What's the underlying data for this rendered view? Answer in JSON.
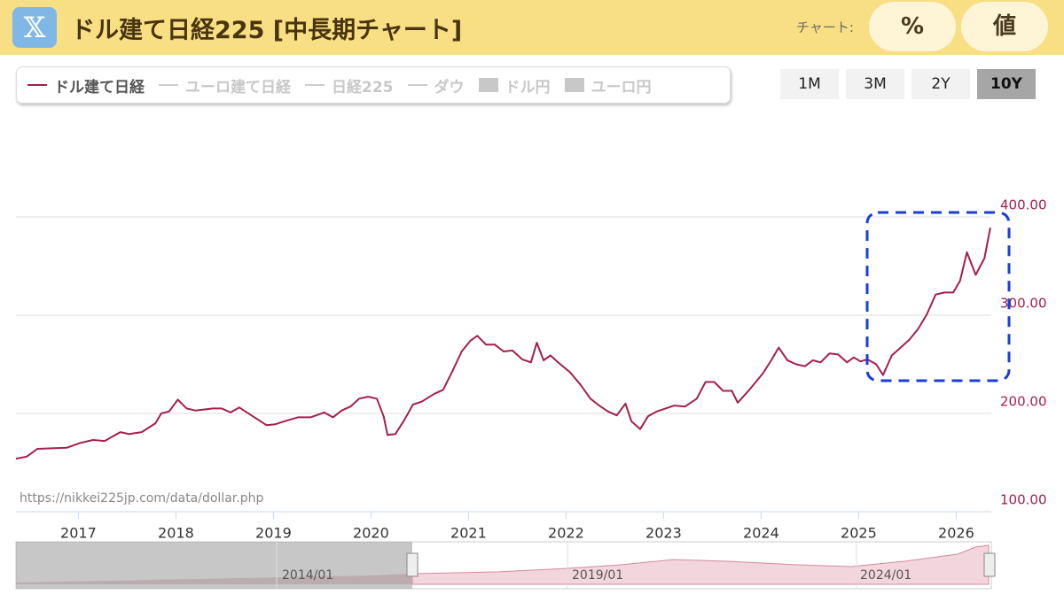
{
  "header": {
    "title": "ドル建て日経225 [中長期チャート]",
    "mode_label": "チャート:",
    "modes": [
      "%",
      "値"
    ]
  },
  "toolbar": {
    "legend_lines": [
      "ユーロ建て日経",
      "日経225",
      "ダウ"
    ],
    "legend_boxes": [
      "ドル円",
      "ユーロ円"
    ],
    "ranges": [
      "1M",
      "3M",
      "2Y",
      "10Y"
    ],
    "active_range": "10Y"
  },
  "source": "https://nikkei225jp.com/data/dollar.php",
  "navigator": {
    "labels": [
      "2014/01",
      "2019/01",
      "2024/01"
    ]
  },
  "chart_data": {
    "type": "line",
    "x": [
      2016.36,
      2016.47,
      2016.58,
      2016.88,
      2017.02,
      2017.15,
      2017.27,
      2017.43,
      2017.52,
      2017.65,
      2017.79,
      2017.85,
      2017.93,
      2018.02,
      2018.11,
      2018.2,
      2018.38,
      2018.47,
      2018.56,
      2018.65,
      2018.79,
      2018.93,
      2019.02,
      2019.11,
      2019.25,
      2019.38,
      2019.52,
      2019.61,
      2019.7,
      2019.79,
      2019.88,
      2019.97,
      2020.06,
      2020.13,
      2020.17,
      2020.25,
      2020.34,
      2020.43,
      2020.52,
      2020.65,
      2020.74,
      2020.84,
      2020.93,
      2021.02,
      2021.09,
      2021.18,
      2021.27,
      2021.36,
      2021.45,
      2021.55,
      2021.64,
      2021.7,
      2021.77,
      2021.84,
      2021.93,
      2022.04,
      2022.15,
      2022.25,
      2022.34,
      2022.43,
      2022.52,
      2022.61,
      2022.67,
      2022.76,
      2022.84,
      2022.93,
      2023.02,
      2023.11,
      2023.22,
      2023.34,
      2023.43,
      2023.52,
      2023.61,
      2023.7,
      2023.76,
      2023.88,
      2024.02,
      2024.11,
      2024.18,
      2024.27,
      2024.36,
      2024.45,
      2024.53,
      2024.61,
      2024.7,
      2024.79,
      2024.88,
      2024.95,
      2025.02,
      2025.09,
      2025.18,
      2025.25,
      2025.34,
      2025.43,
      2025.52,
      2025.61,
      2025.7,
      2025.79,
      2025.88,
      2025.97,
      2026.04,
      2026.11,
      2026.2,
      2026.29,
      2026.35
    ],
    "series": [
      {
        "name": "ドル建て日経",
        "color": "#a3204a",
        "values": [
          154,
          156,
          164,
          165,
          170,
          173,
          172,
          181,
          179,
          181,
          190,
          200,
          202,
          214,
          205,
          203,
          205,
          205,
          201,
          206,
          197,
          188,
          189,
          192,
          196,
          196,
          201,
          196,
          203,
          207,
          215,
          217,
          215,
          197,
          178,
          179,
          193,
          209,
          212,
          220,
          224,
          244,
          263,
          274,
          279,
          270,
          270,
          263,
          264,
          255,
          252,
          272,
          254,
          259,
          251,
          242,
          229,
          215,
          208,
          202,
          198,
          210,
          192,
          184,
          197,
          202,
          205,
          208,
          207,
          215,
          232,
          232,
          223,
          223,
          211,
          224,
          241,
          255,
          267,
          254,
          250,
          248,
          254,
          252,
          261,
          260,
          252,
          257,
          253,
          255,
          250,
          239,
          259,
          267,
          275,
          286,
          301,
          321,
          323,
          323,
          335,
          364,
          341,
          358,
          389
        ]
      }
    ],
    "xlim": [
      2016.36,
      2026.36
    ],
    "xticks": [
      2017,
      2018,
      2019,
      2020,
      2021,
      2022,
      2023,
      2024,
      2025,
      2026
    ],
    "ylim": [
      100,
      495
    ],
    "yticks": [
      {
        "value": 100,
        "label": "100.00"
      },
      {
        "value": 200,
        "label": "200.00"
      },
      {
        "value": 300,
        "label": "300.00"
      },
      {
        "value": 400,
        "label": "400.00"
      }
    ],
    "grid": true
  }
}
